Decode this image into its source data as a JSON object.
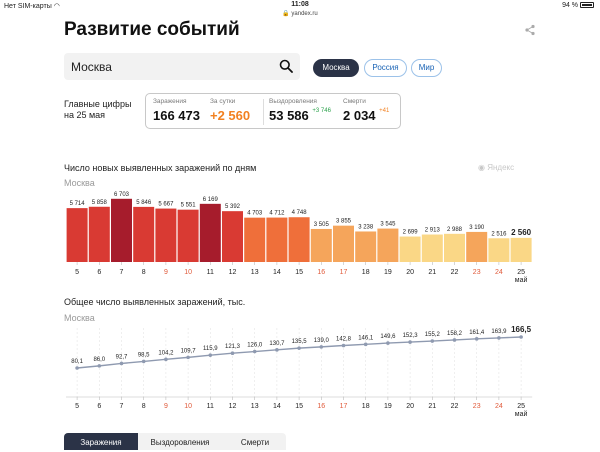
{
  "status_bar": {
    "carrier": "Нет SIM-карты",
    "time": "11:08",
    "battery": "94 %"
  },
  "url": "yandex.ru",
  "page_title": "Развитие событий",
  "search": {
    "value": "Москва"
  },
  "region_pills": [
    "Москва",
    "Россия",
    "Мир"
  ],
  "key_figures": {
    "label_line1": "Главные цифры",
    "label_line2": "на 25 мая",
    "infected": {
      "label": "Заражения",
      "value": "166 473"
    },
    "daily": {
      "label": "За сутки",
      "value": "+2 560"
    },
    "recovered": {
      "label": "Выздоровления",
      "value": "53 586",
      "delta": "+3 746"
    },
    "deaths": {
      "label": "Смерти",
      "value": "2 034",
      "delta": "+41"
    }
  },
  "watermark": "Яндекс",
  "chart_data": [
    {
      "type": "bar",
      "title": "Число новых выявленных заражений по дням",
      "subtitle": "Москва",
      "categories": [
        "5",
        "6",
        "7",
        "8",
        "9",
        "10",
        "11",
        "12",
        "13",
        "14",
        "15",
        "16",
        "17",
        "18",
        "19",
        "20",
        "21",
        "22",
        "23",
        "24",
        "25"
      ],
      "values": [
        5714,
        5858,
        6703,
        5846,
        5667,
        5551,
        6169,
        5392,
        4703,
        4712,
        4748,
        3505,
        3855,
        3238,
        3545,
        2699,
        2913,
        2988,
        3190,
        2516,
        2560
      ],
      "value_labels": [
        "5 714",
        "5 858",
        "6 703",
        "5 846",
        "5 667",
        "5 551",
        "6 169",
        "5 392",
        "4 703",
        "4 712",
        "4 748",
        "3 505",
        "3 855",
        "3 238",
        "3 545",
        "2 699",
        "2 913",
        "2 988",
        "3 190",
        "2 516",
        "2 560"
      ],
      "weekend_categories": [
        "9",
        "10",
        "16",
        "17",
        "23",
        "24"
      ],
      "month_label": "май",
      "ylim": [
        0,
        7000
      ]
    },
    {
      "type": "line",
      "title": "Общее число выявленных заражений, тыс.",
      "subtitle": "Москва",
      "categories": [
        "5",
        "6",
        "7",
        "8",
        "9",
        "10",
        "11",
        "12",
        "13",
        "14",
        "15",
        "16",
        "17",
        "18",
        "19",
        "20",
        "21",
        "22",
        "23",
        "24",
        "25"
      ],
      "values": [
        80.1,
        86.0,
        92.7,
        98.5,
        104.2,
        109.7,
        115.9,
        121.3,
        126.0,
        130.7,
        135.5,
        139.0,
        142.8,
        146.1,
        149.6,
        152.3,
        155.2,
        158.2,
        161.4,
        163.9,
        166.5
      ],
      "value_labels": [
        "80,1",
        "86,0",
        "92,7",
        "98,5",
        "104,2",
        "109,7",
        "115,9",
        "121,3",
        "126,0",
        "130,7",
        "135,5",
        "139,0",
        "142,8",
        "146,1",
        "149,6",
        "152,3",
        "155,2",
        "158,2",
        "161,4",
        "163,9",
        "166,5"
      ],
      "weekend_categories": [
        "9",
        "10",
        "16",
        "17",
        "23",
        "24"
      ],
      "month_label": "май",
      "ylim": [
        0,
        170
      ]
    }
  ],
  "bottom_tabs": [
    "Заражения",
    "Выздоровления",
    "Смерти"
  ]
}
